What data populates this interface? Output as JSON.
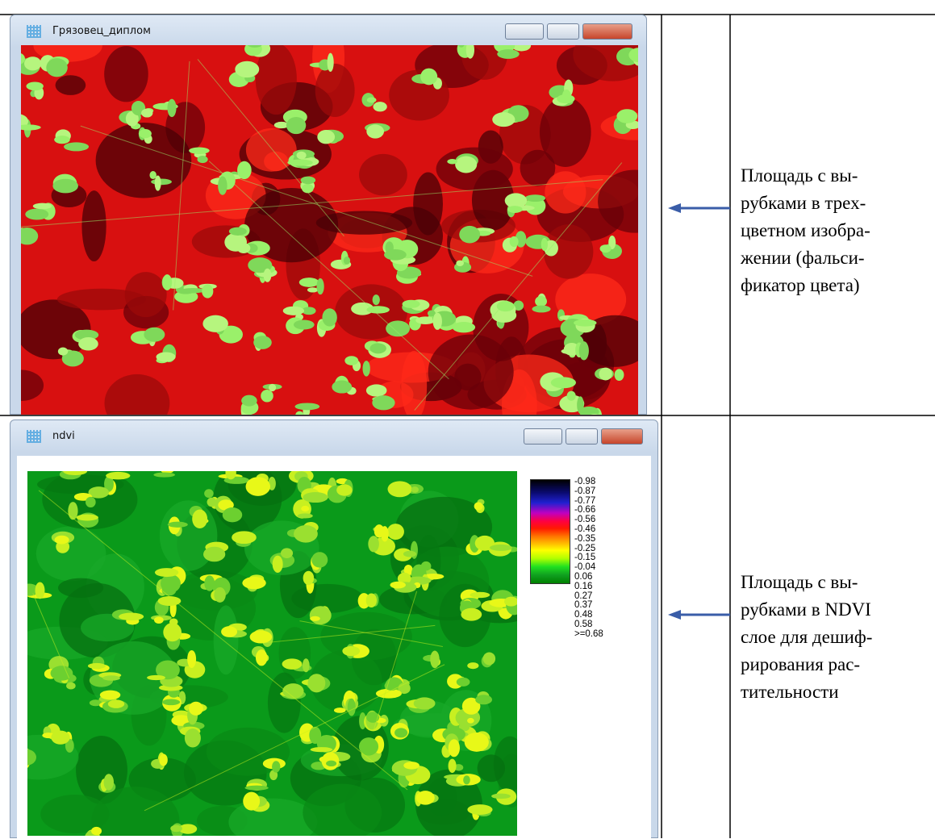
{
  "rows": [
    {
      "window": {
        "title": "Грязовец_диплом"
      },
      "caption": [
        "Площадь с вы-",
        "рубками в трех-",
        "цветном изобра-",
        "жении (фальси-",
        "фикатор цвета)"
      ]
    },
    {
      "window": {
        "title": "ndvi"
      },
      "legend": {
        "labels": [
          "-0.98",
          "-0.87",
          "-0.77",
          "-0.66",
          "-0.56",
          "-0.46",
          "-0.35",
          "-0.25",
          "-0.15",
          "-0.04",
          "0.06",
          "0.16",
          "0.27",
          "0.37",
          "0.48",
          "0.58",
          ">=0.68"
        ]
      },
      "caption": [
        "Площадь с вы-",
        "рубками в NDVI",
        "слое для дешиф-",
        "рирования рас-",
        "тительности"
      ]
    }
  ]
}
